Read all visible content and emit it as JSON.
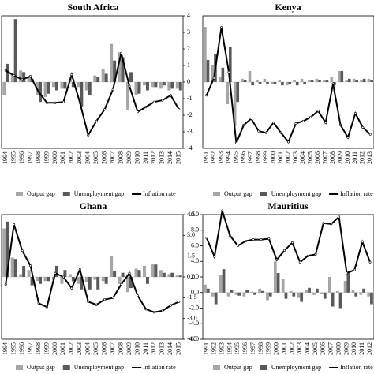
{
  "chart_data": [
    {
      "type": "bar",
      "title": "South Africa",
      "categories": [
        "1994",
        "1995",
        "1996",
        "1997",
        "1998",
        "1999",
        "2000",
        "2001",
        "2002",
        "2003",
        "2004",
        "2005",
        "2006",
        "2007",
        "2008",
        "2009",
        "2010",
        "2011",
        "2012",
        "2013",
        "2014",
        "2015"
      ],
      "series": [
        {
          "name": "Output gap",
          "color": "#a6a6a6",
          "values": [
            -0.8,
            0.5,
            0.7,
            0.3,
            -0.8,
            -0.9,
            -0.3,
            -0.4,
            0.2,
            -0.3,
            -0.5,
            0.4,
            0.8,
            2.3,
            1.8,
            -1.7,
            -0.8,
            -0.2,
            -0.3,
            -0.4,
            -0.5,
            -0.4
          ]
        },
        {
          "name": "Unemployment gap",
          "color": "#595959",
          "values": [
            1.1,
            3.8,
            0.6,
            0.2,
            -1.2,
            -0.7,
            -0.5,
            -0.4,
            -0.3,
            -1.5,
            -0.8,
            0.3,
            0.5,
            1.3,
            1.5,
            0.6,
            -0.7,
            -0.5,
            -0.3,
            -0.2,
            -0.4,
            -0.5
          ]
        },
        {
          "name": "Inflation rate",
          "color": "#000000",
          "type": "line",
          "axis": "y2",
          "values": [
            9.4,
            8.8,
            8.3,
            8.7,
            6.8,
            5.5,
            5.5,
            5.6,
            8.9,
            5.5,
            1.6,
            3.3,
            4.7,
            7.1,
            11.5,
            7.5,
            4.4,
            5.0,
            5.6,
            5.8,
            6.4,
            4.7
          ]
        }
      ],
      "ylim": [
        -4,
        4
      ],
      "yticks": [
        4,
        3,
        2,
        1,
        0,
        -1,
        -2,
        -3,
        -4
      ],
      "y2lim": [
        0,
        16
      ]
    },
    {
      "type": "bar",
      "title": "Kenya",
      "categories": [
        "1991",
        "1992",
        "1993",
        "1994",
        "1995",
        "1996",
        "1997",
        "1998",
        "1999",
        "2000",
        "2001",
        "2002",
        "2003",
        "2004",
        "2005",
        "2006",
        "2007",
        "2008",
        "2009",
        "2010",
        "2011",
        "2012",
        "2013"
      ],
      "series": [
        {
          "name": "Output gap",
          "color": "#a6a6a6",
          "values": [
            5,
            1.5,
            0.5,
            -2,
            -4,
            0.3,
            1.0,
            0.2,
            0.3,
            -0.2,
            0.2,
            -0.3,
            0.2,
            0.3,
            0.2,
            0.3,
            0.2,
            0.5,
            1.0,
            0.2,
            0.3,
            0.2,
            0.3
          ]
        },
        {
          "name": "Unemployment gap",
          "color": "#595959",
          "values": [
            2,
            2.5,
            1.3,
            3.2,
            -1.8,
            0.2,
            -0.3,
            -0.2,
            -0.2,
            -0.2,
            -0.3,
            -0.2,
            -0.3,
            -0.2,
            0.2,
            0.2,
            0.2,
            -0.3,
            1.0,
            0.3,
            0.2,
            0.3,
            0.2
          ]
        },
        {
          "name": "Inflation rate",
          "color": "#000000",
          "type": "line",
          "axis": "y2",
          "values": [
            20,
            26.5,
            45.6,
            28.8,
            2,
            8.8,
            11.2,
            6.5,
            5.9,
            9.7,
            5.9,
            2.4,
            9.4,
            10.3,
            11.8,
            14.1,
            9.7,
            24.4,
            8.8,
            4.1,
            13.2,
            7.9,
            5.3
          ]
        }
      ],
      "ylim": [
        -6,
        6
      ],
      "y2lim": [
        0,
        50
      ]
    },
    {
      "type": "bar",
      "title": "Ghana",
      "categories": [
        "1994",
        "1995",
        "1996",
        "1997",
        "1998",
        "1999",
        "2000",
        "2001",
        "2002",
        "2003",
        "2004",
        "2005",
        "2006",
        "2007",
        "2008",
        "2009",
        "2010",
        "2011",
        "2012",
        "2013",
        "2014",
        "2015"
      ],
      "series": [
        {
          "name": "Output gap",
          "color": "#a6a6a6",
          "values": [
            3.5,
            1.4,
            0.2,
            0.5,
            -0.3,
            -0.3,
            -0.2,
            -0.5,
            0.2,
            -0.5,
            -0.4,
            -0.2,
            -0.3,
            1.5,
            -0.5,
            -1.1,
            0.6,
            0.8,
            0.9,
            0.5,
            0.2,
            0.1
          ]
        },
        {
          "name": "Unemployment gap",
          "color": "#595959",
          "values": [
            4.0,
            1.3,
            0.8,
            -0.6,
            -0.5,
            -0.3,
            0.8,
            0.5,
            -0.3,
            -0.9,
            -0.9,
            -0.9,
            -0.5,
            0.4,
            0.3,
            -0.8,
            0.5,
            -0.5,
            0.9,
            0.3,
            0.3,
            0.1
          ]
        },
        {
          "name": "Inflation rate",
          "color": "#000000",
          "type": "line",
          "axis": "y2",
          "values": [
            30.8,
            64.5,
            49.8,
            41.3,
            20.2,
            18.1,
            37.1,
            35,
            28.7,
            39.2,
            21.1,
            19.4,
            22.3,
            23.2,
            30.8,
            37.1,
            24.5,
            16.9,
            15.2,
            16,
            19,
            21.1
          ]
        }
      ],
      "ylim": [
        -4.5,
        4.5
      ],
      "yticks": [
        {
          "value": 4.5,
          "label": "4.5"
        },
        {
          "value": 3,
          "label": "3.0"
        },
        {
          "value": 1.5,
          "label": "1.5"
        },
        {
          "value": 0,
          "label": "0.0"
        },
        {
          "value": -1.5,
          "label": "-1.5"
        },
        {
          "value": -3,
          "label": "-3.0"
        },
        {
          "value": -4.5,
          "label": "-4.5"
        }
      ],
      "y2lim": [
        0,
        70
      ]
    },
    {
      "type": "bar",
      "title": "Mauritius",
      "categories": [
        "1991",
        "1992",
        "1993",
        "1994",
        "1995",
        "1996",
        "1997",
        "1998",
        "1999",
        "2000",
        "2001",
        "2002",
        "2003",
        "2004",
        "2005",
        "2006",
        "2007",
        "2008",
        "2009",
        "2010",
        "2011",
        "2012"
      ],
      "series": [
        {
          "name": "Output gap",
          "color": "#a6a6a6",
          "values": [
            1,
            -0.5,
            2.2,
            -0.5,
            -0.3,
            -0.5,
            0.1,
            0.5,
            -1,
            4,
            1.8,
            0.2,
            -0.7,
            0.3,
            -0.3,
            -0.2,
            2,
            0.2,
            1.5,
            0.3,
            -0.3,
            -0.5
          ]
        },
        {
          "name": "Unemployment gap",
          "color": "#595959",
          "values": [
            0.5,
            -1.5,
            3,
            0.3,
            -0.4,
            0.3,
            -0.3,
            0.2,
            -0.5,
            2.5,
            -0.8,
            -0.5,
            -1.2,
            0.6,
            0.5,
            -0.8,
            -1.8,
            -2,
            2.5,
            -0.5,
            0.5,
            -1.5
          ]
        },
        {
          "name": "Inflation rate",
          "color": "#000000",
          "type": "line",
          "values": [
            7,
            4.6,
            10.5,
            7.3,
            6.0,
            6.6,
            6.8,
            6.8,
            6.9,
            4.2,
            5.4,
            6.4,
            3.9,
            4.7,
            4.9,
            8.9,
            8.8,
            9.7,
            2.5,
            2.9,
            6.5,
            3.9
          ]
        }
      ],
      "ylim": [
        -6,
        10
      ],
      "yticks": [
        {
          "value": 10,
          "label": "10.0"
        },
        {
          "value": 8,
          "label": "8.0"
        },
        {
          "value": 6,
          "label": "6.0"
        },
        {
          "value": 4,
          "label": "4.0"
        },
        {
          "value": 2,
          "label": "2.0"
        },
        {
          "value": 0,
          "label": "0.0"
        },
        {
          "value": -2,
          "label": "-2.0"
        },
        {
          "value": -4,
          "label": "-4.0"
        },
        {
          "value": -6,
          "label": "-6.0"
        }
      ]
    }
  ]
}
